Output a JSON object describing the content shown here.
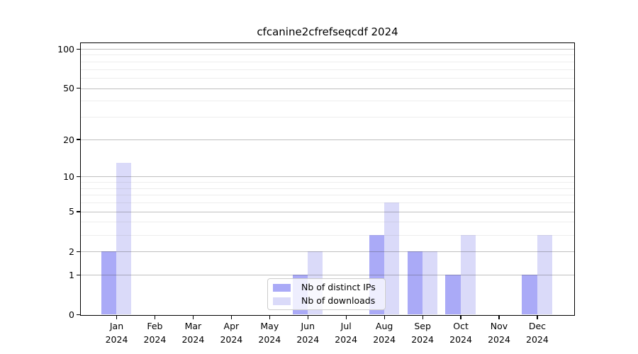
{
  "chart_data": {
    "type": "bar",
    "title": "cfcanine2cfrefseqcdf 2024",
    "categories": [
      "Jan",
      "Feb",
      "Mar",
      "Apr",
      "May",
      "Jun",
      "Jul",
      "Aug",
      "Sep",
      "Oct",
      "Nov",
      "Dec"
    ],
    "year_label": "2024",
    "series": [
      {
        "name": "Nb of distinct IPs",
        "color": "#aaaaf7",
        "values": [
          2,
          0,
          0,
          0,
          0,
          1,
          0,
          3,
          2,
          1,
          0,
          1
        ]
      },
      {
        "name": "Nb of downloads",
        "color": "#dadaf9",
        "values": [
          13,
          0,
          0,
          0,
          0,
          2,
          0,
          6,
          2,
          3,
          0,
          3
        ]
      }
    ],
    "y_ticks": [
      0,
      1,
      2,
      5,
      10,
      20,
      50,
      100
    ],
    "y_scale": "log1p",
    "ylim": [
      0,
      101
    ],
    "grid": true,
    "legend_position": "lower center"
  }
}
